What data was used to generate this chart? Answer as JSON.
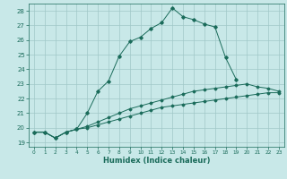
{
  "xlabel": "Humidex (Indice chaleur)",
  "background_color": "#c8e8e8",
  "grid_color": "#a0c8c8",
  "line_color": "#1a6b5a",
  "xlim": [
    -0.5,
    23.5
  ],
  "ylim": [
    18.7,
    28.5
  ],
  "yticks": [
    19,
    20,
    21,
    22,
    23,
    24,
    25,
    26,
    27,
    28
  ],
  "xticks": [
    0,
    1,
    2,
    3,
    4,
    5,
    6,
    7,
    8,
    9,
    10,
    11,
    12,
    13,
    14,
    15,
    16,
    17,
    18,
    19,
    20,
    21,
    22,
    23
  ],
  "series1_x": [
    0,
    1,
    2,
    3,
    4,
    5,
    6,
    7,
    8,
    9,
    10,
    11,
    12,
    13,
    14,
    15,
    16,
    17,
    18,
    19
  ],
  "series1_y": [
    19.7,
    19.7,
    19.3,
    19.7,
    19.9,
    21.0,
    22.5,
    23.2,
    24.9,
    25.9,
    26.2,
    26.8,
    27.2,
    28.2,
    27.6,
    27.4,
    27.1,
    26.9,
    24.8,
    23.3
  ],
  "series2_x": [
    0,
    1,
    2,
    3,
    4,
    5,
    6,
    7,
    8,
    9,
    10,
    11,
    12,
    13,
    14,
    15,
    16,
    17,
    18,
    19,
    20,
    21,
    22,
    23
  ],
  "series2_y": [
    19.7,
    19.7,
    19.3,
    19.7,
    19.9,
    20.1,
    20.4,
    20.7,
    21.0,
    21.3,
    21.5,
    21.7,
    21.9,
    22.1,
    22.3,
    22.5,
    22.6,
    22.7,
    22.8,
    22.9,
    23.0,
    22.8,
    22.7,
    22.5
  ],
  "series3_x": [
    0,
    1,
    2,
    3,
    4,
    5,
    6,
    7,
    8,
    9,
    10,
    11,
    12,
    13,
    14,
    15,
    16,
    17,
    18,
    19,
    20,
    21,
    22,
    23
  ],
  "series3_y": [
    19.7,
    19.7,
    19.3,
    19.7,
    19.9,
    20.0,
    20.2,
    20.4,
    20.6,
    20.8,
    21.0,
    21.2,
    21.4,
    21.5,
    21.6,
    21.7,
    21.8,
    21.9,
    22.0,
    22.1,
    22.2,
    22.3,
    22.4,
    22.4
  ]
}
